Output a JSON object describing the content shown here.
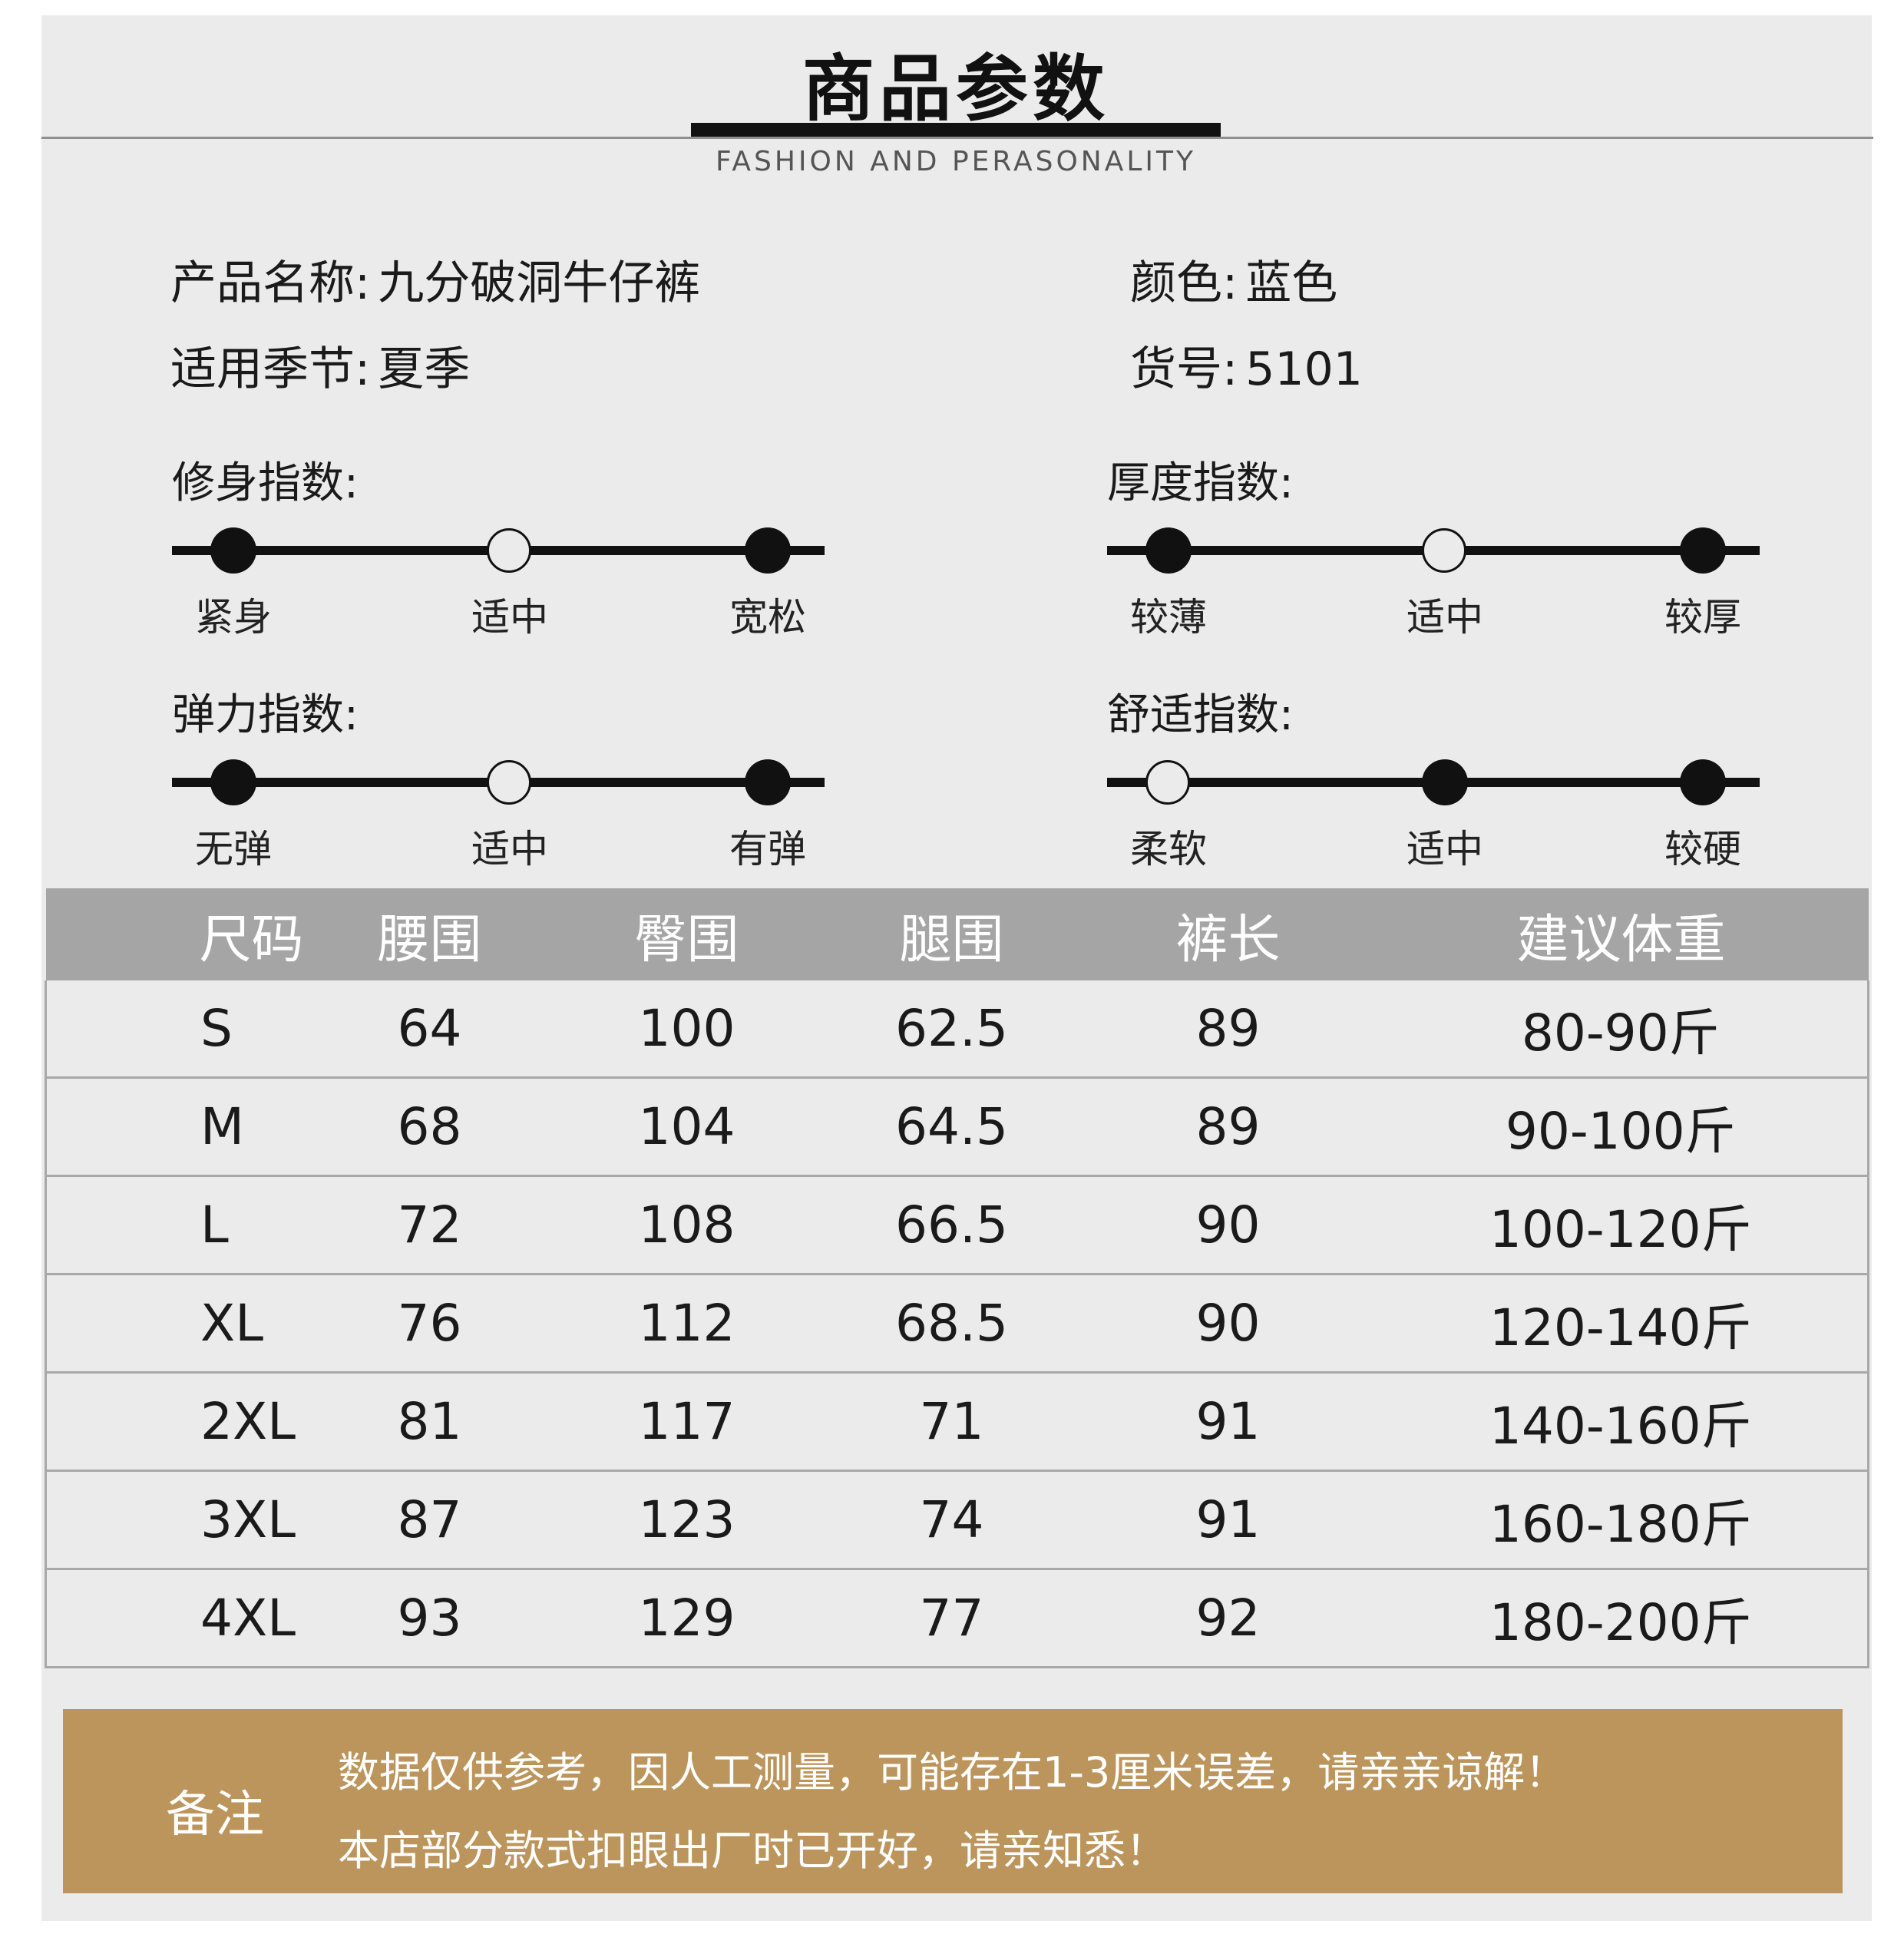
{
  "header": {
    "title": "商品参数",
    "subtitle": "FASHION AND PERASONALITY"
  },
  "info": {
    "name_label": "产品名称:",
    "name_value": "九分破洞牛仔裤",
    "color_label": "颜色:",
    "color_value": "蓝色",
    "season_label": "适用季节:",
    "season_value": "夏季",
    "item_no_label": "货号:",
    "item_no_value": "5101"
  },
  "scales": [
    {
      "title": "修身指数:",
      "labels": [
        "紧身",
        "适中",
        "宽松"
      ],
      "filled": [
        true,
        false,
        true
      ]
    },
    {
      "title": "厚度指数:",
      "labels": [
        "较薄",
        "适中",
        "较厚"
      ],
      "filled": [
        true,
        false,
        true
      ]
    },
    {
      "title": "弹力指数:",
      "labels": [
        "无弹",
        "适中",
        "有弹"
      ],
      "filled": [
        true,
        false,
        true
      ]
    },
    {
      "title": "舒适指数:",
      "labels": [
        "柔软",
        "适中",
        "较硬"
      ],
      "filled": [
        false,
        true,
        true
      ]
    }
  ],
  "size_table": {
    "headers": [
      "尺码",
      "腰围",
      "臀围",
      "腿围",
      "裤长",
      "建议体重"
    ],
    "rows": [
      [
        "S",
        "64",
        "100",
        "62.5",
        "89",
        "80-90斤"
      ],
      [
        "M",
        "68",
        "104",
        "64.5",
        "89",
        "90-100斤"
      ],
      [
        "L",
        "72",
        "108",
        "66.5",
        "90",
        "100-120斤"
      ],
      [
        "XL",
        "76",
        "112",
        "68.5",
        "90",
        "120-140斤"
      ],
      [
        "2XL",
        "81",
        "117",
        "71",
        "91",
        "140-160斤"
      ],
      [
        "3XL",
        "87",
        "123",
        "74",
        "91",
        "160-180斤"
      ],
      [
        "4XL",
        "93",
        "129",
        "77",
        "92",
        "180-200斤"
      ]
    ]
  },
  "note": {
    "label": "备注",
    "line1": "数据仅供参考，因人工测量，可能存在1-3厘米误差，请亲亲谅解！",
    "line2": "本店部分款式扣眼出厂时已开好，请亲知悉！"
  },
  "colors": {
    "panel": "#ebebeb",
    "table_header": "#a5a5a5",
    "note_bg": "#bc955c"
  }
}
